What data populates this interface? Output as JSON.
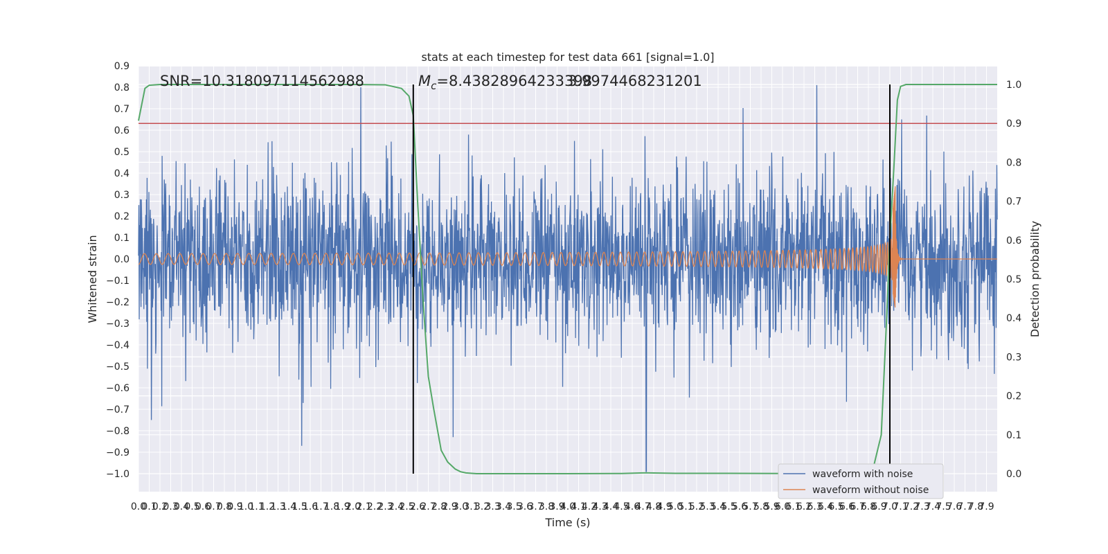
{
  "chart_data": {
    "type": "line",
    "title": "stats at each timestep for test data 661 [signal=1.0]",
    "xlabel": "Time (s)",
    "ylabel": "Whitened strain",
    "y2label": "Detection probability",
    "xlim": [
      0.0,
      8.0
    ],
    "ylim": [
      -1.09,
      0.9
    ],
    "y2lim": [
      -0.05,
      1.05
    ],
    "x_ticks": [
      "0.0",
      "0.1",
      "0.2",
      "0.3",
      "0.4",
      "0.5",
      "0.6",
      "0.7",
      "0.8",
      "0.9",
      "1.0",
      "1.1",
      "1.2",
      "1.3",
      "1.4",
      "1.5",
      "1.6",
      "1.7",
      "1.8",
      "1.9",
      "2.0",
      "2.1",
      "2.2",
      "2.3",
      "2.4",
      "2.5",
      "2.6",
      "2.7",
      "2.8",
      "2.9",
      "3.0",
      "3.1",
      "3.2",
      "3.3",
      "3.4",
      "3.5",
      "3.6",
      "3.7",
      "3.8",
      "3.9",
      "4.0",
      "4.1",
      "4.2",
      "4.3",
      "4.4",
      "4.5",
      "4.6",
      "4.7",
      "4.8",
      "4.9",
      "5.0",
      "5.1",
      "5.2",
      "5.3",
      "5.4",
      "5.5",
      "5.6",
      "5.7",
      "5.8",
      "5.9",
      "6.0",
      "6.1",
      "6.2",
      "6.3",
      "6.4",
      "6.5",
      "6.6",
      "6.7",
      "6.8",
      "6.9",
      "7.0",
      "7.1",
      "7.2",
      "7.3",
      "7.4",
      "7.5",
      "7.6",
      "7.7",
      "7.8",
      "7.9"
    ],
    "y_ticks": [
      "0.9",
      "0.8",
      "0.7",
      "0.6",
      "0.5",
      "0.4",
      "0.3",
      "0.2",
      "0.1",
      "0.0",
      "−0.1",
      "−0.2",
      "−0.3",
      "−0.4",
      "−0.5",
      "−0.6",
      "−0.7",
      "−0.8",
      "−0.9",
      "−1.0"
    ],
    "y2_ticks": [
      "1.0",
      "0.9",
      "0.8",
      "0.7",
      "0.6",
      "0.5",
      "0.4",
      "0.3",
      "0.2",
      "0.1",
      "0.0"
    ],
    "annotations": {
      "snr": "SNR=10.318097114562988",
      "mc_prefix": "M",
      "mc_sub": "c",
      "mc_value": "=8.43828964233398",
      "mc_overlap": "3.9974468231201"
    },
    "threshold": 0.9,
    "vlines": [
      2.56,
      7.0
    ],
    "series": [
      {
        "name": "waveform with noise",
        "color": "#4c72b0",
        "description": "whitened noisy strain, roughly uniform amplitude",
        "envelope": {
          "typical": 0.45,
          "max_peaks": [
            [
              2.07,
              0.8
            ],
            [
              6.32,
              0.81
            ],
            [
              4.73,
              -0.99
            ],
            [
              1.52,
              -0.87
            ],
            [
              2.93,
              -0.83
            ],
            [
              0.12,
              -0.75
            ]
          ]
        }
      },
      {
        "name": "waveform without noise",
        "color": "#dd8452",
        "description": "chirp signal growing to merger near 7.05 s then ringdown",
        "chirp": {
          "start_amp": 0.025,
          "merger_time": 7.05,
          "merger_amp_pos": 0.34,
          "merger_amp_neg": -0.23
        }
      },
      {
        "name": "detection probability",
        "color": "#55a868",
        "axis": "y2",
        "x": [
          0.0,
          0.06,
          0.1,
          0.2,
          0.5,
          1.0,
          1.5,
          2.0,
          2.3,
          2.45,
          2.52,
          2.56,
          2.6,
          2.65,
          2.7,
          2.75,
          2.82,
          2.88,
          2.95,
          3.0,
          3.05,
          3.15,
          3.3,
          3.6,
          4.0,
          4.5,
          4.7,
          4.75,
          5.0,
          5.5,
          6.0,
          6.5,
          6.75,
          6.85,
          6.92,
          6.97,
          7.0,
          7.04,
          7.07,
          7.1,
          7.15,
          7.2,
          7.3,
          7.6,
          8.0
        ],
        "values": [
          0.907,
          0.99,
          0.998,
          1.0,
          1.0,
          1.0,
          1.0,
          1.0,
          0.999,
          0.99,
          0.97,
          0.92,
          0.7,
          0.45,
          0.25,
          0.167,
          0.06,
          0.03,
          0.012,
          0.005,
          0.002,
          0.0,
          0.0,
          0.0,
          0.0,
          0.0005,
          0.002,
          0.002,
          0.001,
          0.001,
          0.0005,
          0.0,
          0.002,
          0.02,
          0.1,
          0.4,
          0.6,
          0.8,
          0.96,
          0.995,
          1.0,
          1.0,
          1.0,
          1.0,
          1.0
        ]
      }
    ],
    "legend": {
      "placement": "lower-right",
      "entries": [
        "waveform with noise",
        "waveform without noise"
      ]
    }
  },
  "colors": {
    "axes_bg": "#eaeaf2",
    "grid": "#ffffff",
    "threshold_line": "#c44e52",
    "vline": "#000000"
  }
}
